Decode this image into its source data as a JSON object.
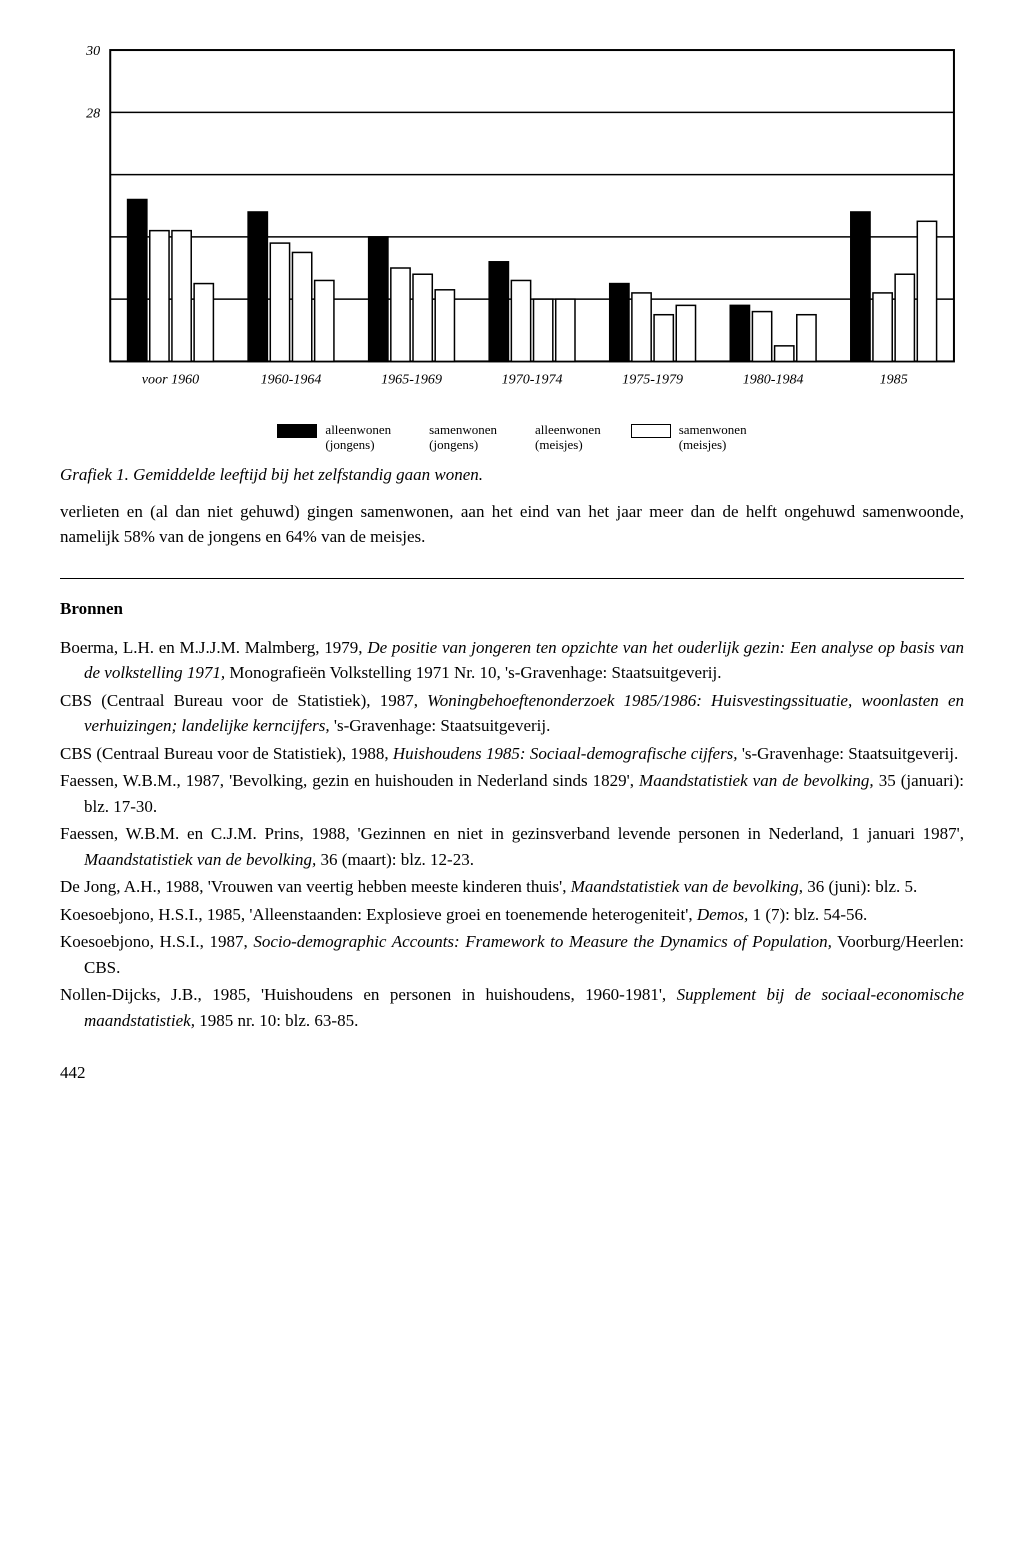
{
  "chart": {
    "type": "bar",
    "y_max": 30,
    "y_ticks": [
      28,
      30
    ],
    "gridlines": [
      22,
      24,
      26,
      28
    ],
    "x_categories": [
      "voor 1960",
      "1960-1964",
      "1965-1969",
      "1970-1974",
      "1975-1979",
      "1980-1984",
      "1985"
    ],
    "series": [
      "alleen_jongens",
      "samen_jongens",
      "alleen_meisjes",
      "samen_meisjes"
    ],
    "data": [
      [
        25.2,
        24.8,
        24.0,
        23.2,
        22.5,
        21.8,
        24.8
      ],
      [
        24.2,
        23.8,
        23.0,
        22.6,
        22.2,
        21.6,
        22.2
      ],
      [
        24.2,
        23.5,
        22.8,
        22.0,
        21.5,
        20.5,
        22.8
      ],
      [
        22.5,
        22.6,
        22.3,
        22.0,
        21.8,
        21.5,
        24.5
      ]
    ],
    "bar_colors": [
      "#000000",
      "#ffffff",
      "#ffffff",
      "#ffffff"
    ],
    "bar_borders": [
      "#000000",
      "#000000",
      "#000000",
      "#000000"
    ],
    "axis_color": "#000000",
    "grid_color": "#000000",
    "background": "#ffffff",
    "x_fontsize": 14,
    "y_fontsize": 14
  },
  "legend": {
    "items": [
      {
        "swatch": "filled",
        "line1": "alleenwonen",
        "line2": "(jongens)"
      },
      {
        "swatch": "none",
        "line1": "samenwonen",
        "line2": "(jongens)"
      },
      {
        "swatch": "none",
        "line1": "alleenwonen",
        "line2": "(meisjes)"
      },
      {
        "swatch": "outline",
        "line1": "samenwonen",
        "line2": "(meisjes)"
      }
    ]
  },
  "caption": "Grafiek 1. Gemiddelde leeftijd bij het zelfstandig gaan wonen.",
  "paragraph": "verlieten en (al dan niet gehuwd) gingen samenwonen, aan het eind van het jaar meer dan de helft ongehuwd samenwoonde, namelijk 58% van de jongens en 64% van de meisjes.",
  "bronnen_heading": "Bronnen",
  "references": [
    "Boerma, L.H. en M.J.J.M. Malmberg, 1979, <em>De positie van jongeren ten opzichte van het ouderlijk gezin: Een analyse op basis van de volkstelling 1971,</em> Monografieën Volkstelling 1971 Nr. 10, 's-Gravenhage: Staatsuitgeverij.",
    "CBS (Centraal Bureau voor de Statistiek), 1987, <em>Woningbehoeftenonderzoek 1985/1986: Huisvestingssituatie, woonlasten en verhuizingen; landelijke kerncijfers,</em> 's-Gravenhage: Staatsuitgeverij.",
    "CBS (Centraal Bureau voor de Statistiek), 1988, <em>Huishoudens 1985: Sociaal-demografische cijfers,</em> 's-Gravenhage: Staatsuitgeverij.",
    "Faessen, W.B.M., 1987, 'Bevolking, gezin en huishouden in Nederland sinds 1829', <em>Maandstatistiek van de bevolking,</em> 35 (januari): blz. 17-30.",
    "Faessen, W.B.M. en C.J.M. Prins, 1988, 'Gezinnen en niet in gezinsverband levende personen in Nederland, 1 januari 1987', <em>Maandstatistiek van de bevolking,</em> 36 (maart): blz. 12-23.",
    "De Jong, A.H., 1988, 'Vrouwen van veertig hebben meeste kinderen thuis', <em>Maandstatistiek van de bevolking,</em> 36 (juni): blz. 5.",
    "Koesoebjono, H.S.I., 1985, 'Alleenstaanden: Explosieve groei en toenemende heterogeniteit', <em>Demos,</em> 1 (7): blz. 54-56.",
    "Koesoebjono, H.S.I., 1987, <em>Socio-demographic Accounts: Framework to Measure the Dynamics of Population,</em> Voorburg/Heerlen: CBS.",
    "Nollen-Dijcks, J.B., 1985, 'Huishoudens en personen in huishoudens, 1960-1981', <em>Supplement bij de sociaal-economische maandstatistiek,</em> 1985 nr. 10: blz. 63-85."
  ],
  "page_number": "442"
}
